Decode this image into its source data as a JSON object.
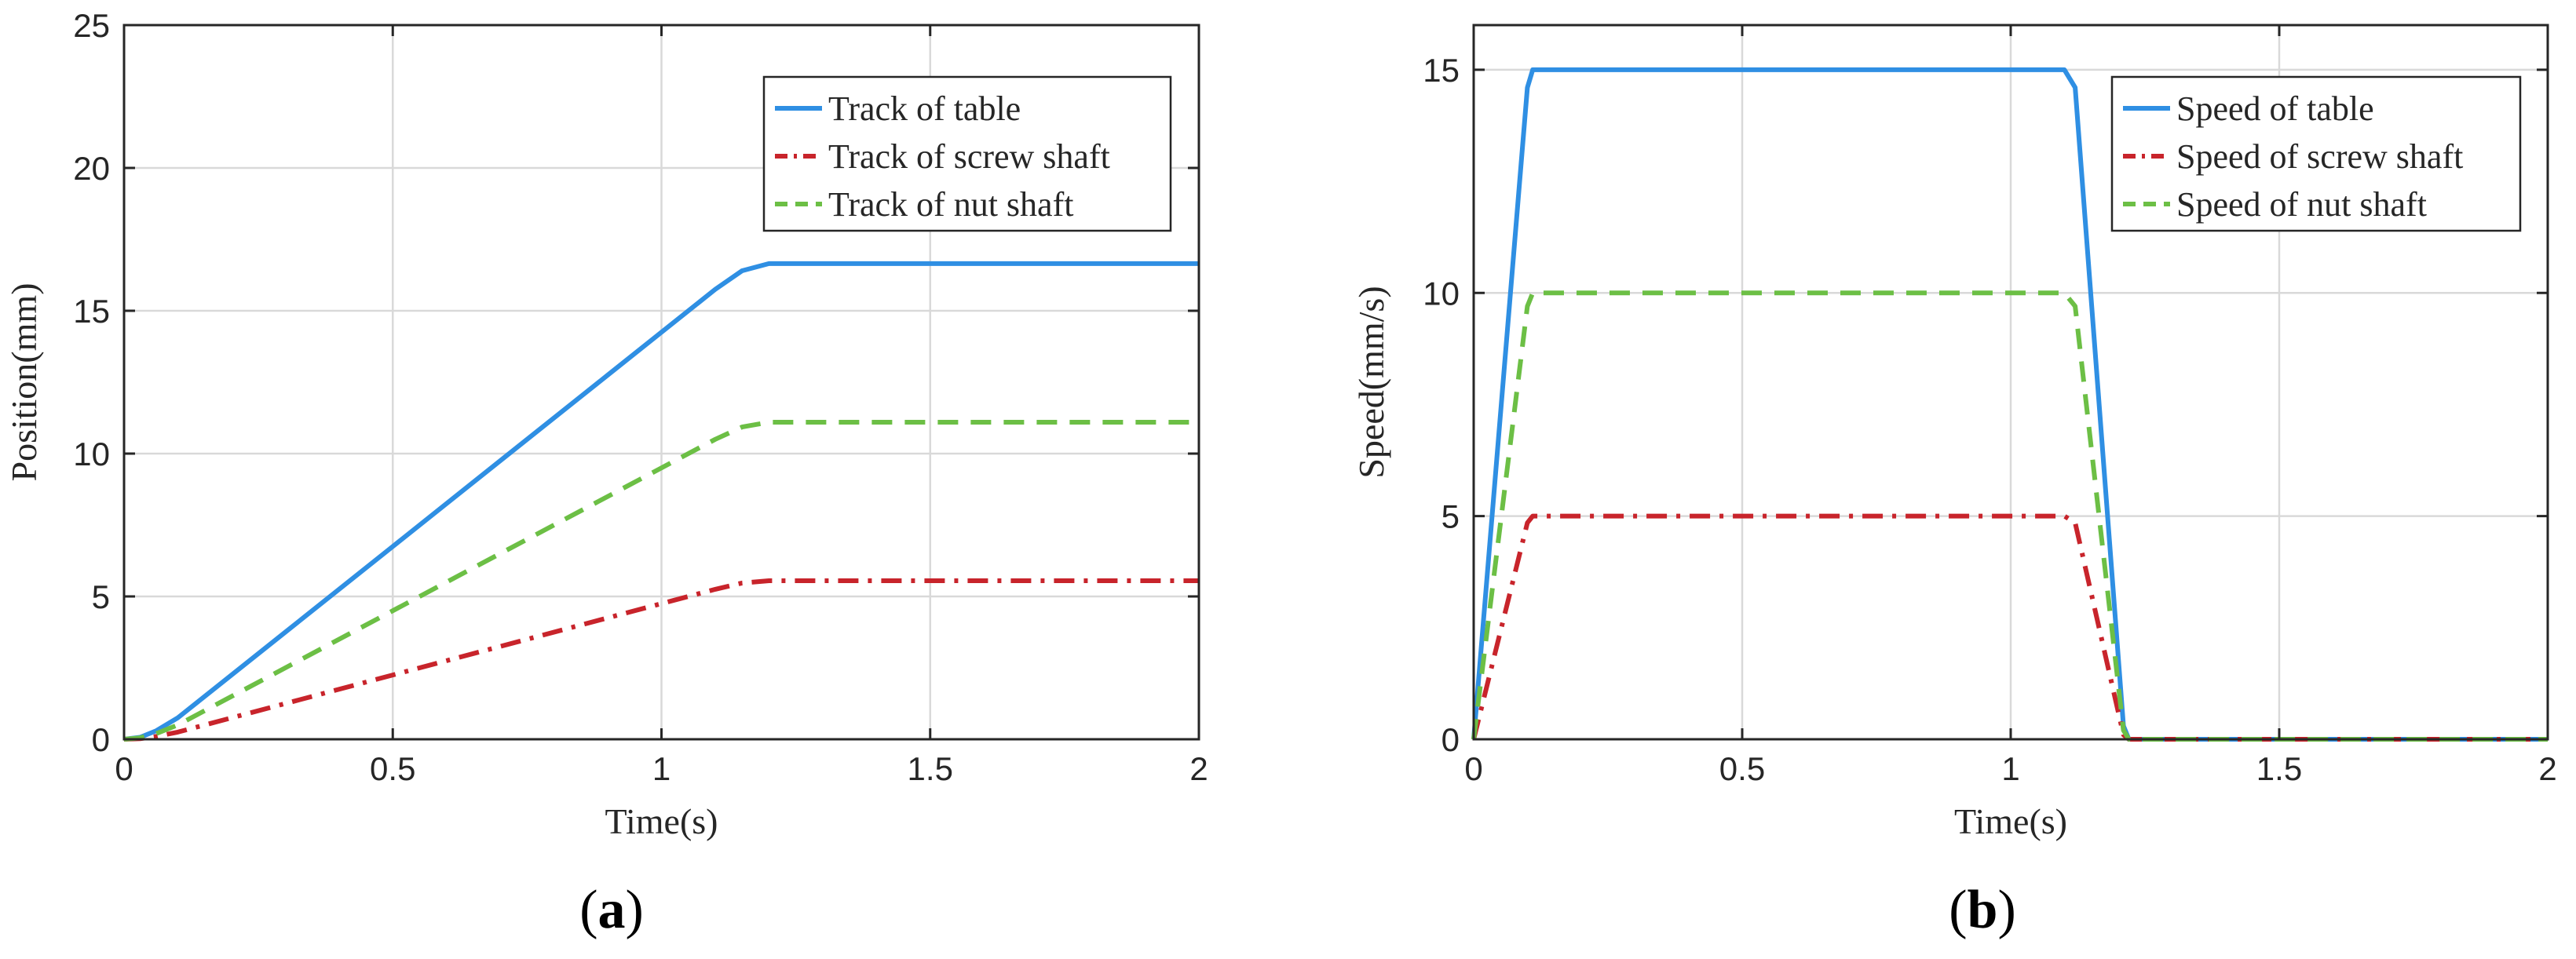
{
  "chart_data": [
    {
      "panel_label": "a",
      "type": "line",
      "xlabel": "Time(s)",
      "ylabel": "Position(mm)",
      "xlim": [
        0,
        2
      ],
      "ylim": [
        0,
        25
      ],
      "xticks": [
        0,
        0.5,
        1,
        1.5,
        2
      ],
      "xtick_labels": [
        "0",
        "0.5",
        "1",
        "1.5",
        "2"
      ],
      "yticks": [
        0,
        5,
        10,
        15,
        20,
        25
      ],
      "ytick_labels": [
        "0",
        "5",
        "10",
        "15",
        "20",
        "25"
      ],
      "grid": true,
      "legend_position": "top-right",
      "series": [
        {
          "name": "Track of table",
          "color": "#2f8fe3",
          "dash": "solid",
          "x": [
            0,
            0.03,
            0.06,
            0.1,
            0.3,
            0.5,
            0.7,
            0.9,
            1.1,
            1.15,
            1.2,
            1.5,
            2.0
          ],
          "y": [
            0,
            0.07,
            0.3,
            0.75,
            3.75,
            6.75,
            9.75,
            12.75,
            15.75,
            16.4,
            16.65,
            16.65,
            16.65
          ]
        },
        {
          "name": "Track of screw shaft",
          "color": "#c8242b",
          "dash": "dashdot",
          "x": [
            0,
            0.03,
            0.06,
            0.1,
            0.3,
            0.5,
            0.7,
            0.9,
            1.1,
            1.15,
            1.2,
            1.5,
            2.0
          ],
          "y": [
            0,
            0.02,
            0.1,
            0.25,
            1.25,
            2.25,
            3.25,
            4.25,
            5.25,
            5.47,
            5.55,
            5.55,
            5.55
          ]
        },
        {
          "name": "Track of nut shaft",
          "color": "#6cbf45",
          "dash": "dashed",
          "x": [
            0,
            0.03,
            0.06,
            0.1,
            0.3,
            0.5,
            0.7,
            0.9,
            1.1,
            1.15,
            1.2,
            1.5,
            2.0
          ],
          "y": [
            0,
            0.05,
            0.2,
            0.5,
            2.5,
            4.5,
            6.5,
            8.5,
            10.5,
            10.93,
            11.1,
            11.1,
            11.1
          ]
        }
      ]
    },
    {
      "panel_label": "b",
      "type": "line",
      "xlabel": "Time(s)",
      "ylabel": "Speed(mm/s)",
      "xlim": [
        0,
        2
      ],
      "ylim": [
        0,
        16
      ],
      "xticks": [
        0,
        0.5,
        1,
        1.5,
        2
      ],
      "xtick_labels": [
        "0",
        "0.5",
        "1",
        "1.5",
        "2"
      ],
      "yticks": [
        0,
        5,
        10,
        15
      ],
      "ytick_labels": [
        "0",
        "5",
        "10",
        "15"
      ],
      "grid": true,
      "legend_position": "top-right",
      "series": [
        {
          "name": "Speed of table",
          "color": "#2f8fe3",
          "dash": "solid",
          "x": [
            0,
            0.1,
            0.11,
            1.1,
            1.12,
            1.21,
            1.22,
            2.0
          ],
          "y": [
            0,
            14.6,
            15,
            15,
            14.6,
            0.3,
            0,
            0
          ]
        },
        {
          "name": "Speed of screw shaft",
          "color": "#c8242b",
          "dash": "dashdot",
          "x": [
            0,
            0.1,
            0.11,
            1.1,
            1.12,
            1.21,
            1.22,
            2.0
          ],
          "y": [
            0,
            4.85,
            5,
            5,
            4.85,
            0.1,
            0,
            0
          ]
        },
        {
          "name": "Speed of nut shaft",
          "color": "#6cbf45",
          "dash": "dashed",
          "x": [
            0,
            0.1,
            0.11,
            1.1,
            1.12,
            1.21,
            1.22,
            2.0
          ],
          "y": [
            0,
            9.7,
            10,
            10,
            9.7,
            0.2,
            0,
            0
          ]
        }
      ]
    }
  ]
}
